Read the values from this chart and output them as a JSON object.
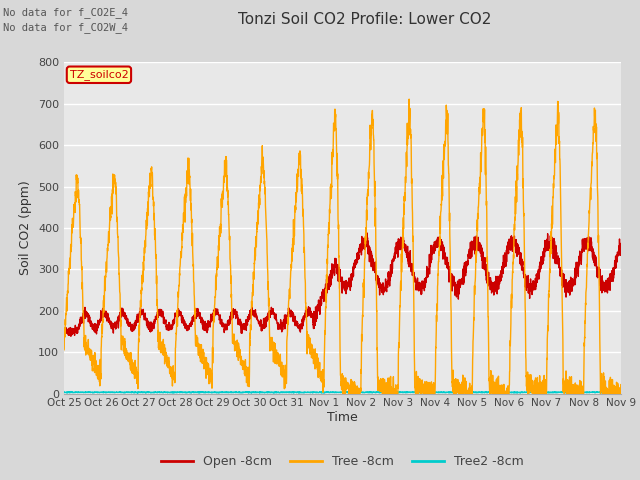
{
  "title": "Tonzi Soil CO2 Profile: Lower CO2",
  "subtitle_lines": [
    "No data for f_CO2E_4",
    "No data for f_CO2W_4"
  ],
  "legend_label": "TZ_soilco2",
  "ylabel": "Soil CO2 (ppm)",
  "xlabel": "Time",
  "ylim": [
    0,
    800
  ],
  "xtick_labels": [
    "Oct 25",
    "Oct 26",
    "Oct 27",
    "Oct 28",
    "Oct 29",
    "Oct 30",
    "Oct 31",
    "Nov 1",
    "Nov 2",
    "Nov 3",
    "Nov 4",
    "Nov 5",
    "Nov 6",
    "Nov 7",
    "Nov 8",
    "Nov 9"
  ],
  "bg_color": "#d8d8d8",
  "plot_bg_color": "#e8e8e8",
  "grid_color": "#ffffff",
  "orange_color": "#FFA500",
  "red_color": "#cc0000",
  "cyan_color": "#00cccc",
  "legend_entries": [
    "Open -8cm",
    "Tree -8cm",
    "Tree2 -8cm"
  ],
  "legend_colors": [
    "#cc0000",
    "#FFA500",
    "#00cccc"
  ],
  "title_fontsize": 11,
  "label_fontsize": 8,
  "tick_fontsize": 8
}
